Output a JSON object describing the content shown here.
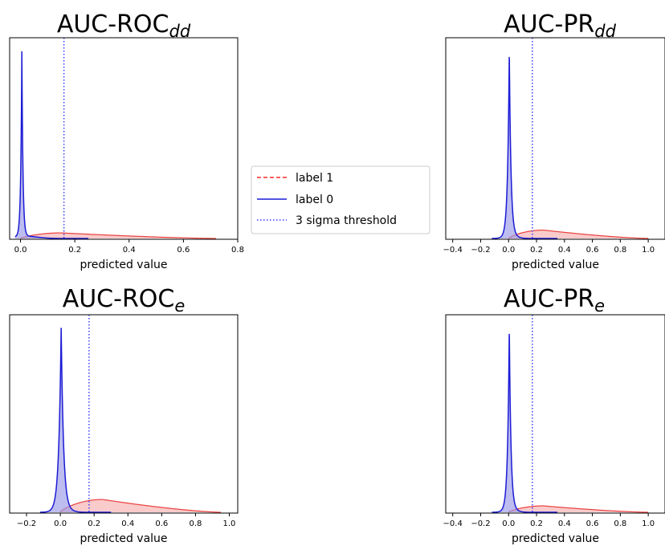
{
  "chart_data": [
    {
      "type": "area",
      "title_main": "AUC-ROC",
      "title_sub": "dd",
      "xlabel": "predicted value",
      "xlim": [
        -0.04,
        0.8
      ],
      "xticks": [
        0.0,
        0.2,
        0.4,
        0.6,
        0.8
      ],
      "xtick_labels": [
        "0.0",
        "0.2",
        "0.4",
        "0.6",
        "0.8"
      ],
      "threshold": 0.16,
      "label1": {
        "peak": 0.15,
        "height": 0.03,
        "range": [
          0.0,
          0.72
        ]
      },
      "label0": {
        "peak": 0.005,
        "height": 1.0,
        "width": 0.004,
        "range": [
          -0.02,
          0.25
        ]
      }
    },
    {
      "type": "area",
      "title_main": "AUC-PR",
      "title_sub": "dd",
      "xlabel": "predicted value",
      "xlim": [
        -0.45,
        1.12
      ],
      "xticks": [
        -0.4,
        -0.2,
        0.0,
        0.2,
        0.4,
        0.6,
        0.8,
        1.0
      ],
      "xtick_labels": [
        "−0.4",
        "−0.2",
        "0.0",
        "0.2",
        "0.4",
        "0.6",
        "0.8",
        "1.0"
      ],
      "threshold": 0.17,
      "label1": {
        "peak": 0.25,
        "height": 0.045,
        "range": [
          0.0,
          1.0
        ]
      },
      "label0": {
        "peak": 0.005,
        "height": 1.0,
        "width": 0.012,
        "range": [
          -0.12,
          0.35
        ]
      }
    },
    {
      "type": "area",
      "title_main": "AUC-ROC",
      "title_sub": "e",
      "xlabel": "predicted value",
      "xlim": [
        -0.3,
        1.05
      ],
      "xticks": [
        -0.2,
        0.0,
        0.2,
        0.4,
        0.6,
        0.8,
        1.0
      ],
      "xtick_labels": [
        "−0.2",
        "0.0",
        "0.2",
        "0.4",
        "0.6",
        "0.8",
        "1.0"
      ],
      "threshold": 0.17,
      "label1": {
        "peak": 0.25,
        "height": 0.07,
        "range": [
          0.0,
          0.95
        ]
      },
      "label0": {
        "peak": 0.005,
        "height": 1.0,
        "width": 0.014,
        "range": [
          -0.12,
          0.3
        ]
      }
    },
    {
      "type": "area",
      "title_main": "AUC-PR",
      "title_sub": "e",
      "xlabel": "predicted value",
      "xlim": [
        -0.45,
        1.12
      ],
      "xticks": [
        -0.4,
        -0.2,
        0.0,
        0.2,
        0.4,
        0.6,
        0.8,
        1.0
      ],
      "xtick_labels": [
        "−0.4",
        "−0.2",
        "0.0",
        "0.2",
        "0.4",
        "0.6",
        "0.8",
        "1.0"
      ],
      "threshold": 0.17,
      "label1": {
        "peak": 0.25,
        "height": 0.035,
        "range": [
          0.0,
          1.0
        ]
      },
      "label0": {
        "peak": 0.005,
        "height": 1.0,
        "width": 0.012,
        "range": [
          -0.12,
          0.35
        ]
      }
    }
  ],
  "legend": {
    "entries": [
      {
        "label": "label 1",
        "color": "#ff2a2a",
        "style": "dashed"
      },
      {
        "label": "label 0",
        "color": "#1c1cd6",
        "style": "solid"
      },
      {
        "label": "3 sigma threshold",
        "color": "#3b3bff",
        "style": "dotted"
      }
    ]
  },
  "colors": {
    "label1_line": "#e8403f",
    "label1_fill": "#f5a0a0",
    "label0_line": "#1c1cd6",
    "label0_fill": "#9a9ae8",
    "threshold": "#3b3bff"
  }
}
